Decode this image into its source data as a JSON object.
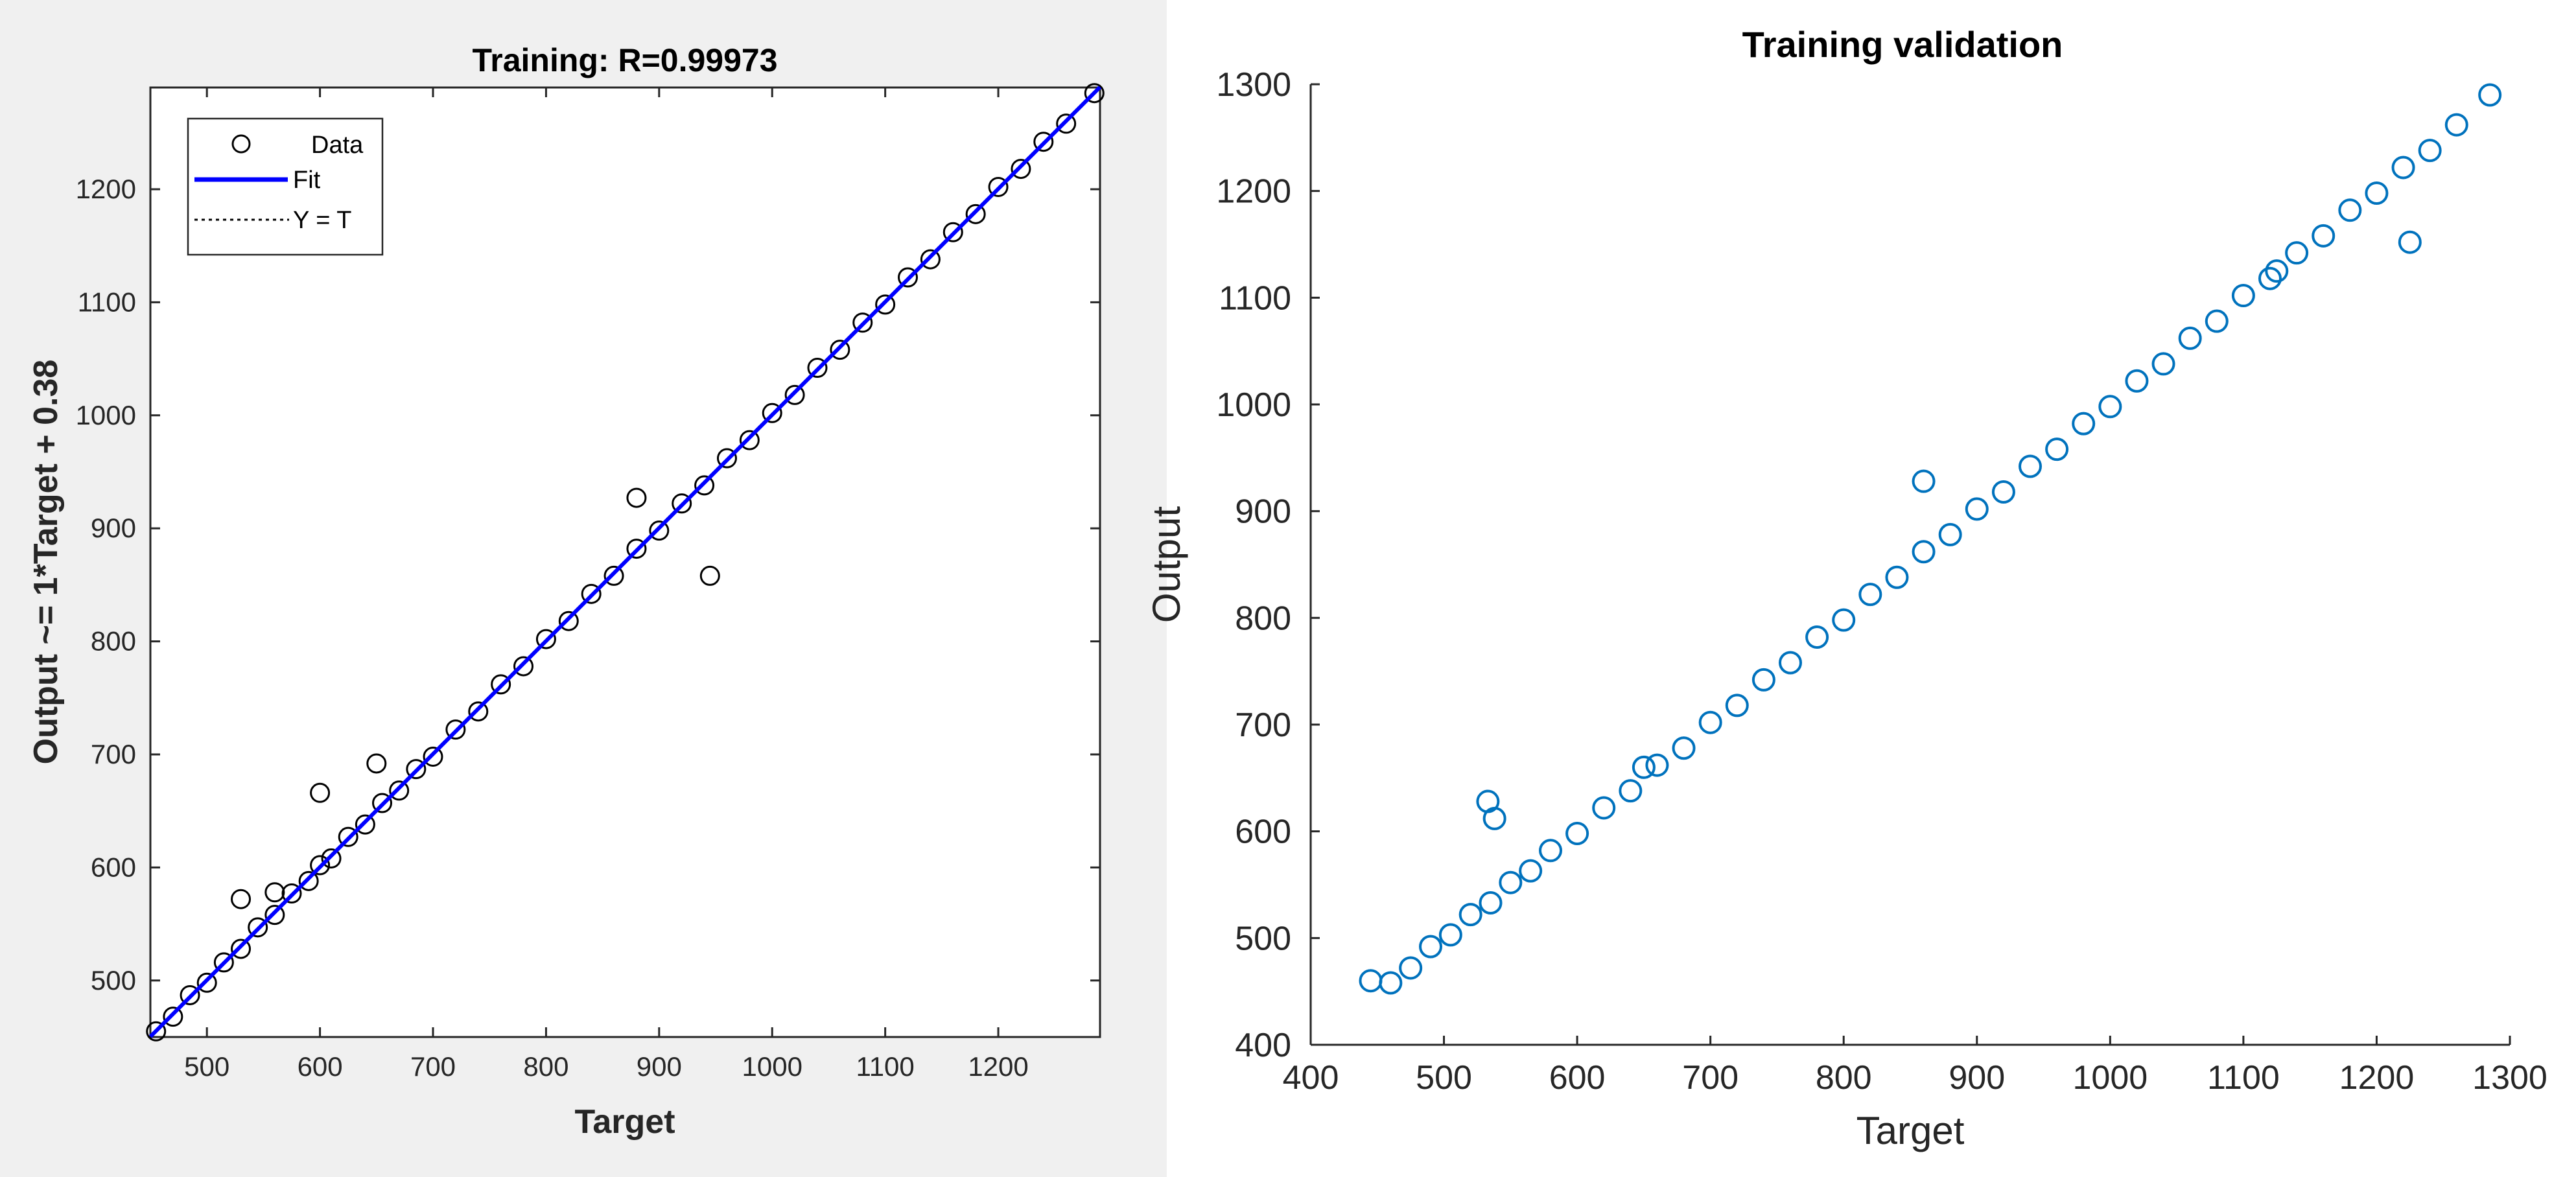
{
  "colors": {
    "left_background": "#f0f0f0",
    "plot_background": "#ffffff",
    "left_markers": "#000000",
    "left_fit_line": "#0000ff",
    "right_markers": "#0072bd",
    "axis": "#262626"
  },
  "chart_data": [
    {
      "type": "scatter",
      "title": "Training: R=0.99973",
      "xlabel": "Target",
      "ylabel": "Output ~= 1*Target + 0.38",
      "xlim": [
        450,
        1290
      ],
      "ylim": [
        450,
        1290
      ],
      "xticks": [
        500,
        600,
        700,
        800,
        900,
        1000,
        1100,
        1200
      ],
      "yticks": [
        500,
        600,
        700,
        800,
        900,
        1000,
        1100,
        1200
      ],
      "grid": false,
      "legend_position": "top-left",
      "legend": [
        {
          "label": "Data",
          "style": "circle-marker"
        },
        {
          "label": "Fit",
          "style": "solid-line"
        },
        {
          "label": "Y = T",
          "style": "dotted-line"
        }
      ],
      "fit": {
        "slope": 1,
        "intercept": 0.38
      },
      "series": [
        {
          "name": "Data",
          "marker": "circle",
          "x": [
            455,
            470,
            485,
            500,
            515,
            530,
            545,
            560,
            575,
            590,
            600,
            610,
            625,
            640,
            655,
            670,
            685,
            700,
            720,
            740,
            760,
            780,
            800,
            820,
            840,
            860,
            880,
            900,
            920,
            940,
            945,
            960,
            980,
            1000,
            1020,
            1040,
            1060,
            1080,
            1100,
            1120,
            1140,
            1160,
            1180,
            1200,
            1220,
            1240,
            1260,
            1285,
            530,
            560,
            600,
            650,
            880
          ],
          "y": [
            455,
            468,
            487,
            498,
            516,
            528,
            547,
            558,
            577,
            588,
            602,
            608,
            627,
            638,
            657,
            668,
            687,
            698,
            722,
            738,
            762,
            778,
            802,
            818,
            842,
            858,
            882,
            898,
            922,
            938,
            858,
            962,
            978,
            1002,
            1018,
            1042,
            1058,
            1082,
            1098,
            1122,
            1138,
            1162,
            1178,
            1202,
            1218,
            1242,
            1258,
            1285,
            572,
            578,
            666,
            692,
            927
          ]
        }
      ]
    },
    {
      "type": "scatter",
      "title": "Training validation",
      "xlabel": "Target",
      "ylabel": "Output",
      "xlim": [
        400,
        1300
      ],
      "ylim": [
        400,
        1300
      ],
      "xticks": [
        400,
        500,
        600,
        700,
        800,
        900,
        1000,
        1100,
        1200,
        1300
      ],
      "yticks": [
        400,
        500,
        600,
        700,
        800,
        900,
        1000,
        1100,
        1200,
        1300
      ],
      "grid": false,
      "series": [
        {
          "marker": "circle",
          "x": [
            445,
            460,
            475,
            490,
            505,
            520,
            535,
            550,
            565,
            580,
            600,
            620,
            640,
            660,
            680,
            700,
            720,
            740,
            760,
            780,
            800,
            820,
            840,
            860,
            880,
            900,
            920,
            940,
            960,
            980,
            1000,
            1020,
            1040,
            1060,
            1080,
            1100,
            1120,
            1140,
            1160,
            1180,
            1200,
            1220,
            1240,
            1260,
            1285,
            533,
            538,
            650,
            860,
            1125,
            1225
          ],
          "y": [
            460,
            458,
            472,
            492,
            503,
            522,
            533,
            552,
            563,
            582,
            598,
            622,
            638,
            662,
            678,
            702,
            718,
            742,
            758,
            782,
            798,
            822,
            838,
            862,
            878,
            902,
            918,
            942,
            958,
            982,
            998,
            1022,
            1038,
            1062,
            1078,
            1102,
            1118,
            1142,
            1158,
            1182,
            1198,
            1222,
            1238,
            1262,
            1290,
            628,
            612,
            660,
            928,
            1125,
            1152
          ]
        }
      ]
    }
  ]
}
